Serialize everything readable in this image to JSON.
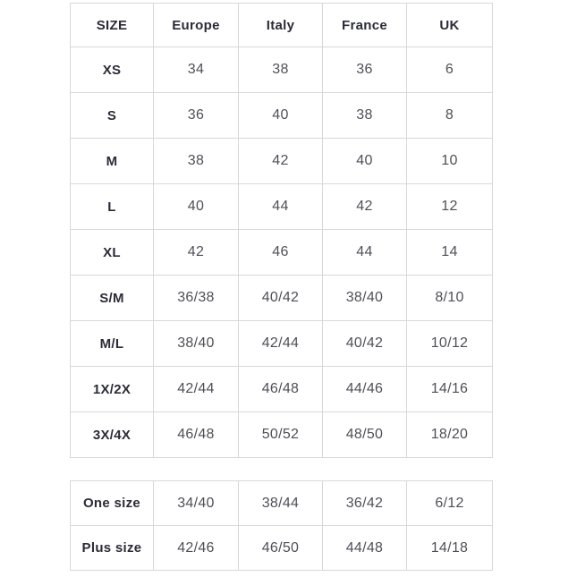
{
  "main_table": {
    "headers": [
      "SIZE",
      "Europe",
      "Italy",
      "France",
      "UK"
    ],
    "rows": [
      {
        "size": "XS",
        "values": [
          "34",
          "38",
          "36",
          "6"
        ]
      },
      {
        "size": "S",
        "values": [
          "36",
          "40",
          "38",
          "8"
        ]
      },
      {
        "size": "M",
        "values": [
          "38",
          "42",
          "40",
          "10"
        ]
      },
      {
        "size": "L",
        "values": [
          "40",
          "44",
          "42",
          "12"
        ]
      },
      {
        "size": "XL",
        "values": [
          "42",
          "46",
          "44",
          "14"
        ]
      },
      {
        "size": "S/M",
        "values": [
          "36/38",
          "40/42",
          "38/40",
          "8/10"
        ]
      },
      {
        "size": "M/L",
        "values": [
          "38/40",
          "42/44",
          "40/42",
          "10/12"
        ]
      },
      {
        "size": "1X/2X",
        "values": [
          "42/44",
          "46/48",
          "44/46",
          "14/16"
        ]
      },
      {
        "size": "3X/4X",
        "values": [
          "46/48",
          "50/52",
          "48/50",
          "18/20"
        ]
      }
    ]
  },
  "extra_table": {
    "rows": [
      {
        "size": "One size",
        "values": [
          "34/40",
          "38/44",
          "36/42",
          "6/12"
        ]
      },
      {
        "size": "Plus size",
        "values": [
          "42/46",
          "46/50",
          "44/48",
          "14/18"
        ]
      }
    ]
  },
  "colors": {
    "label_text": "#2b2c38",
    "value_text": "#4f4f58",
    "border": "#d8d8d8",
    "background": "#ffffff"
  }
}
